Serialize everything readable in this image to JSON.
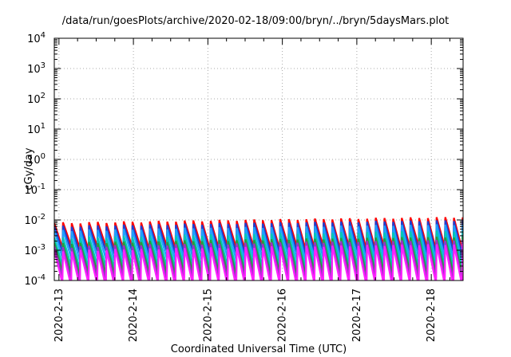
{
  "chart_data": {
    "type": "line",
    "title": "/data/run/goesPlots/archive/2020-02-18/09:00/bryn/../bryn/5daysMars.plot",
    "xlabel": "Coordinated Universal Time (UTC)",
    "ylabel": "cGy/day",
    "x_axis": {
      "type": "time",
      "range": [
        "2020-02-12 22:30",
        "2020-02-18 10:15"
      ],
      "ticks": [
        "2020-02-13",
        "2020-02-14",
        "2020-02-15",
        "2020-02-16",
        "2020-02-17",
        "2020-02-18"
      ],
      "tick_labels": [
        "2020-2-13",
        "2020-2-14",
        "2020-2-15",
        "2020-2-16",
        "2020-2-17",
        "2020-2-18"
      ]
    },
    "y_axis": {
      "scale": "log",
      "range": [
        0.0001,
        10000
      ],
      "tick_labels": [
        {
          "base": "10",
          "exp": "-4"
        },
        {
          "base": "10",
          "exp": "-3"
        },
        {
          "base": "10",
          "exp": "-2"
        },
        {
          "base": "10",
          "exp": "-1"
        },
        {
          "base": "10",
          "exp": "0"
        },
        {
          "base": "10",
          "exp": "1"
        },
        {
          "base": "10",
          "exp": "2"
        },
        {
          "base": "10",
          "exp": "3"
        },
        {
          "base": "10",
          "exp": "4"
        }
      ]
    },
    "grid": true,
    "legend": "none",
    "sawtooth": {
      "period_hours": 2.8,
      "start": "2020-02-12 22:30",
      "end": "2020-02-18 10:15"
    },
    "series": [
      {
        "color": "#ff0000",
        "peak_low": 0.0075,
        "peak_high": 0.0125,
        "trough": 0.0012
      },
      {
        "color": "#1f3fd0",
        "peak_low": 0.0058,
        "peak_high": 0.0098,
        "trough": 0.00085
      },
      {
        "color": "#1ea0ff",
        "peak_low": 0.0042,
        "peak_high": 0.0072,
        "trough": 0.0005
      },
      {
        "color": "#00c8b4",
        "peak_low": 0.0024,
        "peak_high": 0.0044,
        "trough": 0.00028
      },
      {
        "color": "#2a9a3a",
        "peak_low": 0.0016,
        "peak_high": 0.0028,
        "trough": 0.00017
      },
      {
        "color": "#9b30c8",
        "peak_low": 0.0012,
        "peak_high": 0.0022,
        "trough": 0.00011
      },
      {
        "color": "#ff20ff",
        "peak_low": 0.0009,
        "peak_high": 0.0016,
        "trough": 7e-05
      }
    ]
  }
}
